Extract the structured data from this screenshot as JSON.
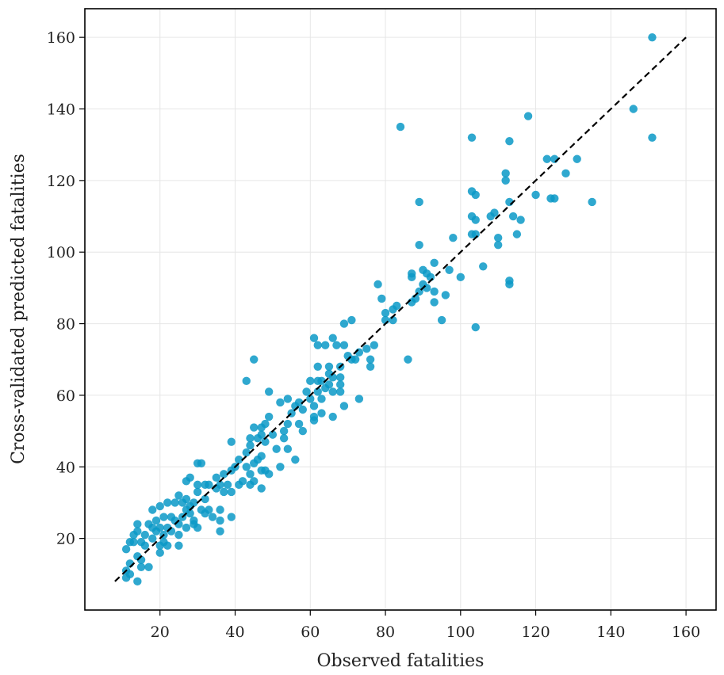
{
  "chart_data": {
    "type": "scatter",
    "title": "",
    "xlabel": "Observed fatalities",
    "ylabel": "Cross-validated predicted fatalities",
    "xlim": [
      0,
      168
    ],
    "ylim": [
      0,
      168
    ],
    "xticks": [
      20,
      40,
      60,
      80,
      100,
      120,
      140,
      160
    ],
    "yticks": [
      20,
      40,
      60,
      80,
      100,
      120,
      140,
      160
    ],
    "xtick_labels": [
      "20",
      "40",
      "60",
      "80",
      "100",
      "120",
      "140",
      "160"
    ],
    "ytick_labels": [
      "20",
      "40",
      "60",
      "80",
      "100",
      "120",
      "140",
      "160"
    ],
    "grid": true,
    "point_color": "#0a99c7",
    "reference_line": {
      "from": [
        8,
        8
      ],
      "to": [
        160,
        160
      ],
      "style": "dashed",
      "color": "#000000"
    },
    "points": [
      [
        151,
        160
      ],
      [
        146,
        140
      ],
      [
        151,
        132
      ],
      [
        84,
        135
      ],
      [
        103,
        132
      ],
      [
        118,
        138
      ],
      [
        113,
        131
      ],
      [
        123,
        126
      ],
      [
        125,
        126
      ],
      [
        131,
        126
      ],
      [
        112,
        122
      ],
      [
        112,
        120
      ],
      [
        128,
        122
      ],
      [
        103,
        117
      ],
      [
        104,
        116
      ],
      [
        120,
        116
      ],
      [
        125,
        115
      ],
      [
        124,
        115
      ],
      [
        135,
        114
      ],
      [
        113,
        114
      ],
      [
        89,
        114
      ],
      [
        103,
        110
      ],
      [
        108,
        110
      ],
      [
        109,
        111
      ],
      [
        114,
        110
      ],
      [
        116,
        109
      ],
      [
        104,
        109
      ],
      [
        103,
        105
      ],
      [
        104,
        105
      ],
      [
        110,
        104
      ],
      [
        115,
        105
      ],
      [
        98,
        104
      ],
      [
        89,
        102
      ],
      [
        110,
        102
      ],
      [
        106,
        96
      ],
      [
        93,
        97
      ],
      [
        90,
        95
      ],
      [
        97,
        95
      ],
      [
        91,
        94
      ],
      [
        87,
        94
      ],
      [
        87,
        93
      ],
      [
        92,
        93
      ],
      [
        100,
        93
      ],
      [
        113,
        92
      ],
      [
        113,
        91
      ],
      [
        78,
        91
      ],
      [
        90,
        91
      ],
      [
        91,
        90
      ],
      [
        89,
        89
      ],
      [
        93,
        89
      ],
      [
        96,
        88
      ],
      [
        88,
        87
      ],
      [
        79,
        87
      ],
      [
        87,
        86
      ],
      [
        93,
        86
      ],
      [
        82,
        84
      ],
      [
        83,
        85
      ],
      [
        80,
        83
      ],
      [
        80,
        81
      ],
      [
        82,
        81
      ],
      [
        95,
        81
      ],
      [
        104,
        79
      ],
      [
        71,
        81
      ],
      [
        69,
        80
      ],
      [
        61,
        76
      ],
      [
        66,
        76
      ],
      [
        62,
        74
      ],
      [
        64,
        74
      ],
      [
        67,
        74
      ],
      [
        69,
        74
      ],
      [
        75,
        73
      ],
      [
        77,
        74
      ],
      [
        73,
        72
      ],
      [
        70,
        71
      ],
      [
        76,
        70
      ],
      [
        72,
        70
      ],
      [
        71,
        70
      ],
      [
        86,
        70
      ],
      [
        45,
        70
      ],
      [
        65,
        68
      ],
      [
        68,
        68
      ],
      [
        62,
        68
      ],
      [
        76,
        68
      ],
      [
        65,
        66
      ],
      [
        66,
        65
      ],
      [
        68,
        65
      ],
      [
        60,
        64
      ],
      [
        62,
        64
      ],
      [
        63,
        64
      ],
      [
        43,
        64
      ],
      [
        65,
        63
      ],
      [
        68,
        63
      ],
      [
        64,
        62
      ],
      [
        66,
        61
      ],
      [
        49,
        61
      ],
      [
        59,
        61
      ],
      [
        62,
        61
      ],
      [
        68,
        61
      ],
      [
        54,
        59
      ],
      [
        60,
        59
      ],
      [
        63,
        59
      ],
      [
        73,
        59
      ],
      [
        52,
        58
      ],
      [
        57,
        58
      ],
      [
        61,
        57
      ],
      [
        69,
        57
      ],
      [
        56,
        57
      ],
      [
        58,
        56
      ],
      [
        55,
        55
      ],
      [
        63,
        55
      ],
      [
        66,
        54
      ],
      [
        49,
        54
      ],
      [
        61,
        54
      ],
      [
        61,
        53
      ],
      [
        48,
        52
      ],
      [
        54,
        52
      ],
      [
        57,
        52
      ],
      [
        45,
        51
      ],
      [
        47,
        51
      ],
      [
        53,
        50
      ],
      [
        58,
        50
      ],
      [
        50,
        49
      ],
      [
        47,
        49
      ],
      [
        44,
        48
      ],
      [
        53,
        48
      ],
      [
        46,
        48
      ],
      [
        48,
        47
      ],
      [
        39,
        47
      ],
      [
        44,
        46
      ],
      [
        51,
        45
      ],
      [
        54,
        45
      ],
      [
        43,
        44
      ],
      [
        47,
        43
      ],
      [
        56,
        42
      ],
      [
        46,
        42
      ],
      [
        41,
        42
      ],
      [
        45,
        41
      ],
      [
        40,
        40
      ],
      [
        52,
        40
      ],
      [
        43,
        40
      ],
      [
        48,
        39
      ],
      [
        39,
        39
      ],
      [
        37,
        38
      ],
      [
        30,
        41
      ],
      [
        31,
        41
      ],
      [
        47,
        39
      ],
      [
        44,
        38
      ],
      [
        49,
        38
      ],
      [
        35,
        37
      ],
      [
        28,
        37
      ],
      [
        27,
        36
      ],
      [
        45,
        36
      ],
      [
        42,
        36
      ],
      [
        38,
        35
      ],
      [
        32,
        35
      ],
      [
        36,
        35
      ],
      [
        44,
        35
      ],
      [
        33,
        35
      ],
      [
        41,
        35
      ],
      [
        30,
        35
      ],
      [
        35,
        34
      ],
      [
        47,
        34
      ],
      [
        37,
        33
      ],
      [
        39,
        33
      ],
      [
        30,
        33
      ],
      [
        25,
        32
      ],
      [
        27,
        31
      ],
      [
        32,
        31
      ],
      [
        29,
        30
      ],
      [
        22,
        30
      ],
      [
        26,
        30
      ],
      [
        24,
        30
      ],
      [
        28,
        29
      ],
      [
        31,
        28
      ],
      [
        36,
        28
      ],
      [
        20,
        29
      ],
      [
        27,
        28
      ],
      [
        33,
        28
      ],
      [
        18,
        28
      ],
      [
        28,
        27
      ],
      [
        32,
        27
      ],
      [
        21,
        26
      ],
      [
        23,
        26
      ],
      [
        26,
        26
      ],
      [
        34,
        26
      ],
      [
        39,
        26
      ],
      [
        19,
        25
      ],
      [
        24,
        25
      ],
      [
        29,
        25
      ],
      [
        36,
        25
      ],
      [
        25,
        24
      ],
      [
        29,
        24
      ],
      [
        14,
        24
      ],
      [
        17,
        24
      ],
      [
        18,
        23
      ],
      [
        20,
        23
      ],
      [
        22,
        23
      ],
      [
        27,
        23
      ],
      [
        30,
        23
      ],
      [
        14,
        22
      ],
      [
        19,
        22
      ],
      [
        23,
        22
      ],
      [
        16,
        21
      ],
      [
        21,
        21
      ],
      [
        25,
        21
      ],
      [
        13,
        21
      ],
      [
        36,
        22
      ],
      [
        18,
        20
      ],
      [
        12,
        19
      ],
      [
        15,
        19
      ],
      [
        21,
        19
      ],
      [
        13,
        19
      ],
      [
        20,
        18
      ],
      [
        22,
        18
      ],
      [
        16,
        18
      ],
      [
        11,
        17
      ],
      [
        25,
        18
      ],
      [
        20,
        16
      ],
      [
        14,
        15
      ],
      [
        15,
        14
      ],
      [
        12,
        13
      ],
      [
        15,
        12
      ],
      [
        17,
        12
      ],
      [
        11,
        11
      ],
      [
        12,
        10
      ],
      [
        11,
        9
      ],
      [
        14,
        8
      ]
    ]
  }
}
